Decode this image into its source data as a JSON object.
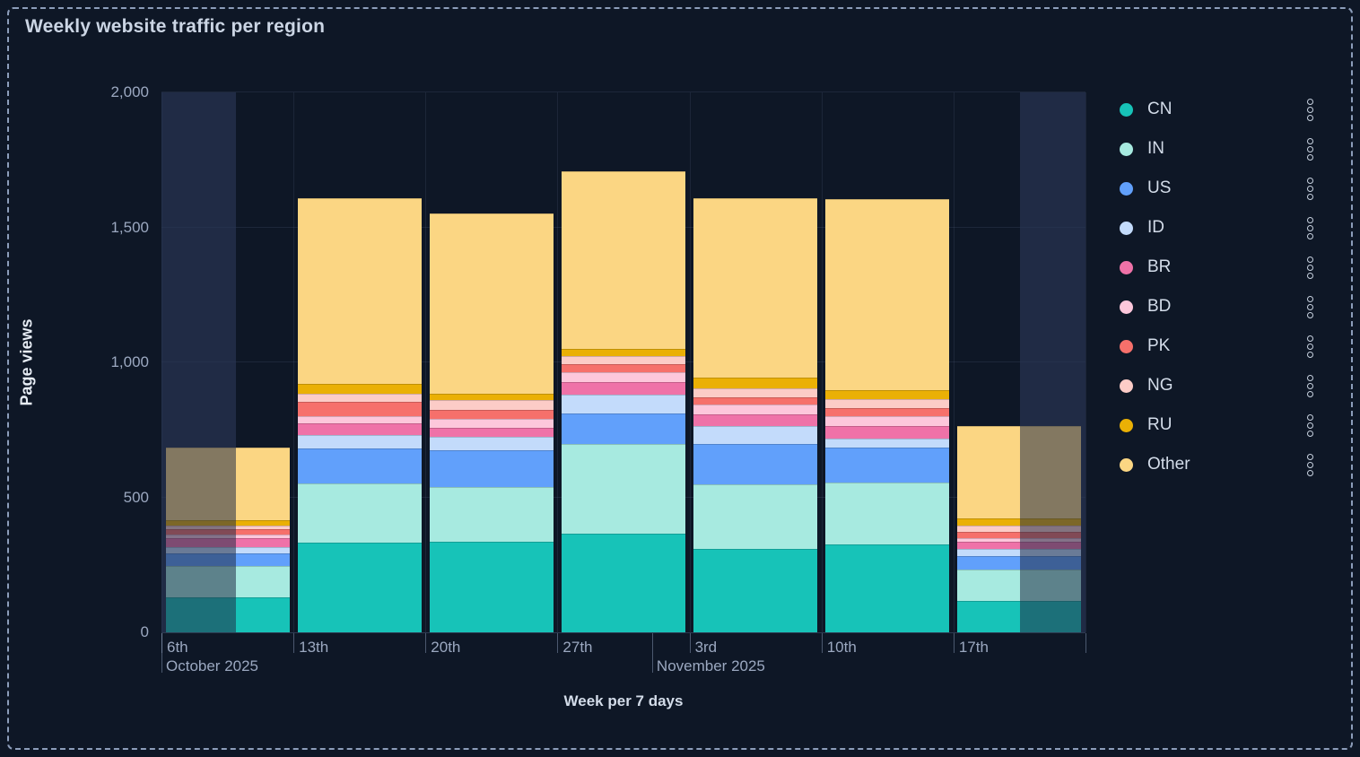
{
  "panel": {
    "title": "Weekly website traffic per region"
  },
  "y_axis": {
    "label": "Page views",
    "ticks": [
      {
        "value": 0,
        "label": "0"
      },
      {
        "value": 500,
        "label": "500"
      },
      {
        "value": 1000,
        "label": "1,000"
      },
      {
        "value": 1500,
        "label": "1,500"
      },
      {
        "value": 2000,
        "label": "2,000"
      }
    ]
  },
  "x_axis": {
    "label": "Week per 7 days",
    "day_ticks": [
      {
        "label": "6th",
        "slot": 0
      },
      {
        "label": "13th",
        "slot": 1
      },
      {
        "label": "20th",
        "slot": 2
      },
      {
        "label": "27th",
        "slot": 3
      },
      {
        "label": "3rd",
        "slot": 4
      },
      {
        "label": "10th",
        "slot": 5
      },
      {
        "label": "17th",
        "slot": 6
      }
    ],
    "month_dividers": [
      {
        "label": "October 2025",
        "frac": 0.0
      },
      {
        "label": "November 2025",
        "frac": 0.531
      }
    ]
  },
  "legend": {
    "items": [
      {
        "label": "CN",
        "color": "#17C3B8"
      },
      {
        "label": "IN",
        "color": "#A7EAE0"
      },
      {
        "label": "US",
        "color": "#61A0FB"
      },
      {
        "label": "ID",
        "color": "#C3DBFB"
      },
      {
        "label": "BR",
        "color": "#EF72A8"
      },
      {
        "label": "BD",
        "color": "#FDC7DB"
      },
      {
        "label": "PK",
        "color": "#F6706B"
      },
      {
        "label": "NG",
        "color": "#FCCCC7"
      },
      {
        "label": "RU",
        "color": "#EAB005"
      },
      {
        "label": "Other",
        "color": "#FBD683"
      }
    ],
    "menu_icon": "kebab-vertical-icon"
  },
  "chart_data": {
    "type": "bar",
    "stacked": true,
    "title": "Weekly website traffic per region",
    "xlabel": "Week per 7 days",
    "ylabel": "Page views",
    "ylim": [
      0,
      2000
    ],
    "grid": true,
    "legend_position": "right",
    "categories": [
      "Oct 6",
      "Oct 13",
      "Oct 20",
      "Oct 27",
      "Nov 3",
      "Nov 10",
      "Nov 17"
    ],
    "series": [
      {
        "name": "CN",
        "color": "#17C3B8",
        "values": [
          130,
          332,
          336,
          365,
          309,
          326,
          116
        ]
      },
      {
        "name": "IN",
        "color": "#A7EAE0",
        "values": [
          115,
          219,
          202,
          333,
          239,
          229,
          117
        ]
      },
      {
        "name": "US",
        "color": "#61A0FB",
        "values": [
          48,
          130,
          136,
          113,
          150,
          129,
          49
        ]
      },
      {
        "name": "ID",
        "color": "#C3DBFB",
        "values": [
          23,
          50,
          50,
          69,
          66,
          34,
          27
        ]
      },
      {
        "name": "BR",
        "color": "#EF72A8",
        "values": [
          33,
          43,
          33,
          47,
          43,
          46,
          27
        ]
      },
      {
        "name": "BD",
        "color": "#FDC7DB",
        "values": [
          13,
          27,
          34,
          36,
          37,
          37,
          13
        ]
      },
      {
        "name": "PK",
        "color": "#F6706B",
        "values": [
          20,
          53,
          33,
          30,
          26,
          30,
          23
        ]
      },
      {
        "name": "NG",
        "color": "#FCCCC7",
        "values": [
          14,
          30,
          36,
          30,
          34,
          33,
          23
        ]
      },
      {
        "name": "RU",
        "color": "#EAB005",
        "values": [
          20,
          36,
          24,
          27,
          40,
          33,
          27
        ]
      },
      {
        "name": "Other",
        "color": "#FBD683",
        "values": [
          270,
          688,
          667,
          658,
          664,
          708,
          342
        ]
      }
    ],
    "totals": [
      686,
      1608,
      1551,
      1708,
      1608,
      1605,
      764
    ],
    "out_of_range_regions": [
      {
        "x0_frac": 0.0,
        "x1_frac": 0.0806
      },
      {
        "x0_frac": 0.929,
        "x1_frac": 1.0
      }
    ]
  }
}
